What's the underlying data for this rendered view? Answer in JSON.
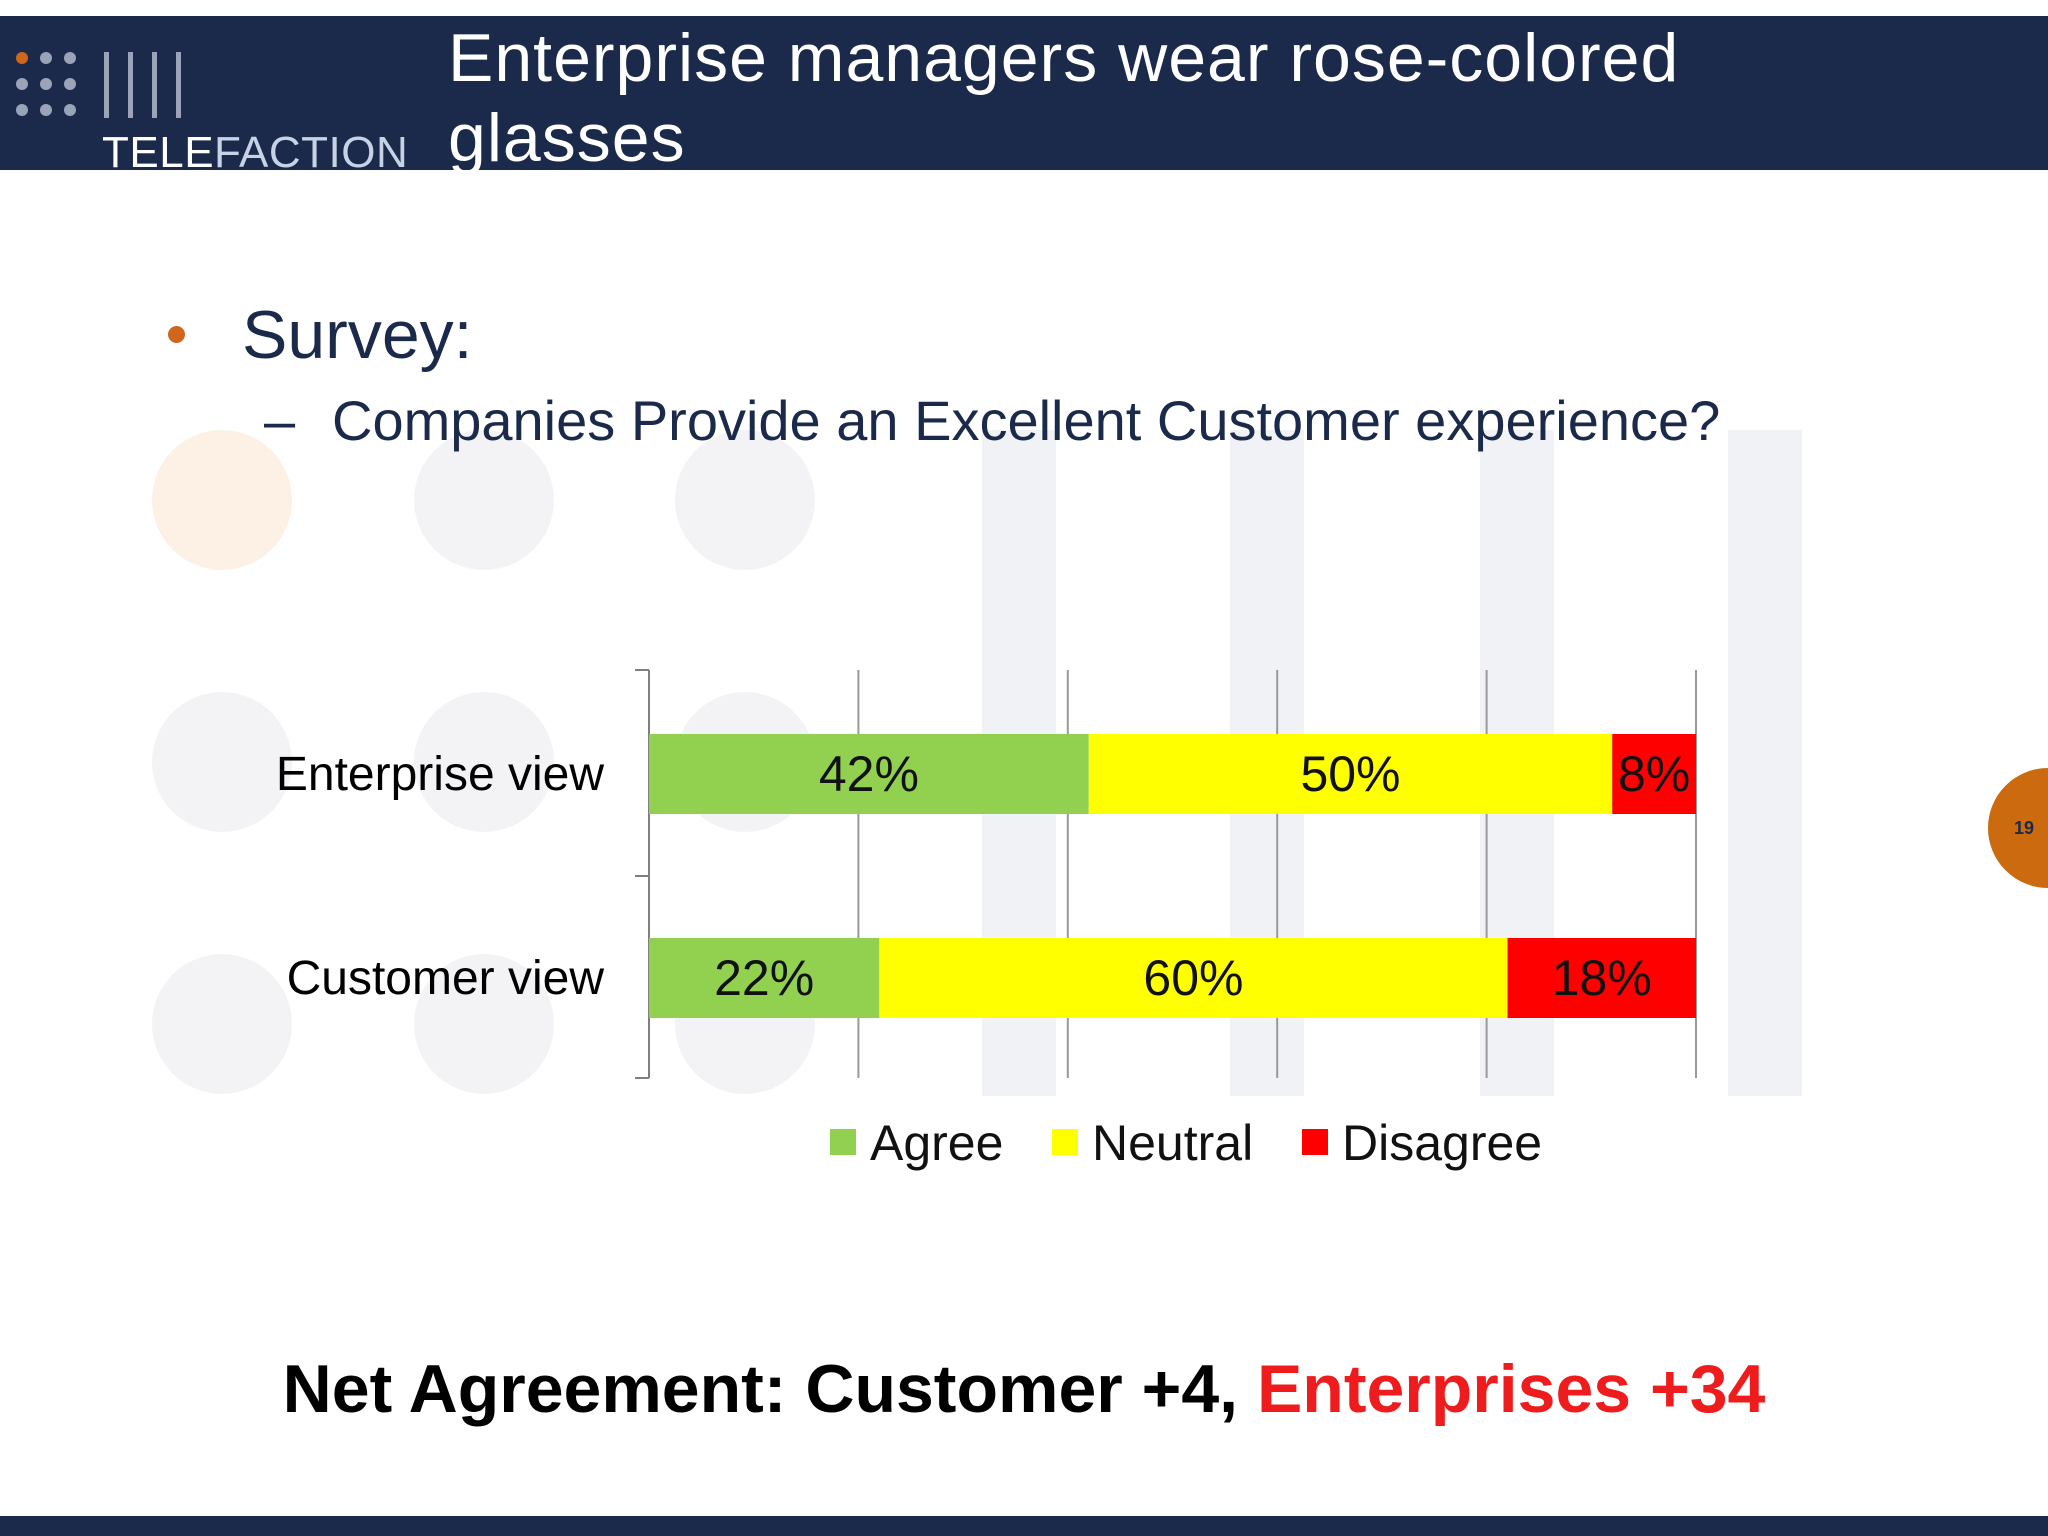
{
  "header": {
    "title": "Enterprise managers wear rose-colored glasses",
    "logo_text_bold": "TELE",
    "logo_text_light": "FACTION"
  },
  "content": {
    "bullet": "Survey:",
    "sub_bullet_dash": "–",
    "sub_bullet": "Companies Provide an Excellent Customer experience?"
  },
  "chart_data": {
    "type": "bar",
    "orientation": "horizontal",
    "stacked": true,
    "unit": "%",
    "categories": [
      "Enterprise view",
      "Customer view"
    ],
    "series": [
      {
        "name": "Agree",
        "values": [
          42,
          22
        ],
        "labels": [
          "42%",
          "22%"
        ],
        "color": "#92d050"
      },
      {
        "name": "Neutral",
        "values": [
          50,
          60
        ],
        "labels": [
          "50%",
          "60%"
        ],
        "color": "#ffff00"
      },
      {
        "name": "Disagree",
        "values": [
          8,
          18
        ],
        "labels": [
          "8%",
          "18%"
        ],
        "color": "#ff0000"
      }
    ],
    "xlim": [
      0,
      100
    ],
    "grid": true,
    "legend": "bottom"
  },
  "footer": {
    "net_prefix": "Net Agreement: Customer +4, ",
    "net_highlight": "Enterprises +34"
  },
  "page_number": "19",
  "colors": {
    "header_bg": "#1b2a4a",
    "accent": "#cc6a10",
    "highlight": "#ee1c1c"
  }
}
